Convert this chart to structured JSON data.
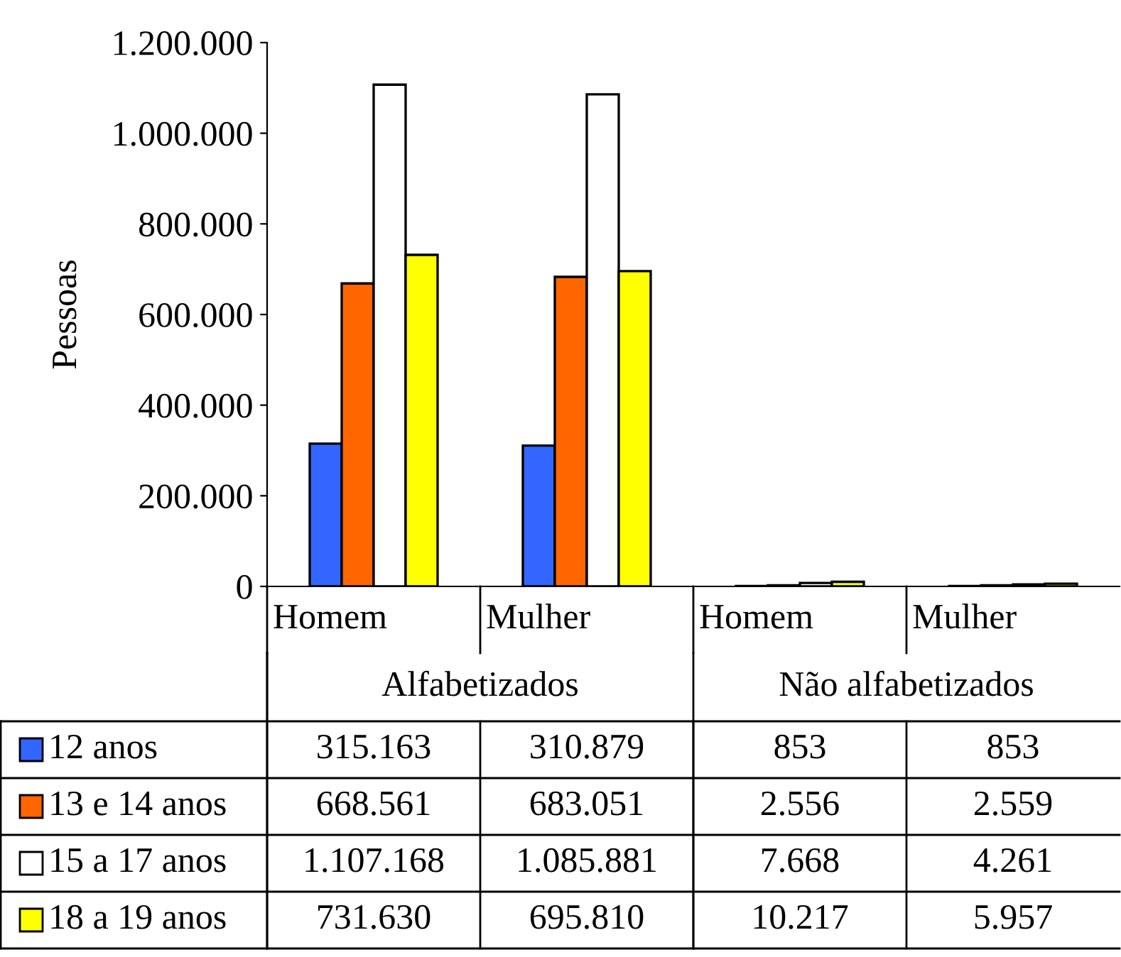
{
  "chart_data": {
    "type": "bar",
    "ylabel": "Pessoas",
    "categories": [
      "Homem",
      "Mulher",
      "Homem",
      "Mulher"
    ],
    "annotations": [
      "Alfabetizados",
      "Não alfabetizados"
    ],
    "series": [
      {
        "name": "12 anos",
        "color": "#3366ff",
        "values": [
          315163,
          310879,
          853,
          853
        ],
        "value_labels": [
          "315.163",
          "310.879",
          "853",
          "853"
        ]
      },
      {
        "name": "13 e 14 anos",
        "color": "#ff6600",
        "values": [
          668561,
          683051,
          2556,
          2559
        ],
        "value_labels": [
          "668.561",
          "683.051",
          "2.556",
          "2.559"
        ]
      },
      {
        "name": "15 a 17 anos",
        "color": "#ffffff",
        "values": [
          1107168,
          1085881,
          7668,
          4261
        ],
        "value_labels": [
          "1.107.168",
          "1.085.881",
          "7.668",
          "4.261"
        ]
      },
      {
        "name": "18 a 19 anos",
        "color": "#ffff00",
        "values": [
          731630,
          695810,
          10217,
          5957
        ],
        "value_labels": [
          "731.630",
          "695.810",
          "10.217",
          "5.957"
        ]
      }
    ],
    "ylim": [
      0,
      1200000
    ],
    "yticks": [
      {
        "value": 0,
        "label": "0"
      },
      {
        "value": 200000,
        "label": "200.000"
      },
      {
        "value": 400000,
        "label": "400.000"
      },
      {
        "value": 600000,
        "label": "600.000"
      },
      {
        "value": 800000,
        "label": "800.000"
      },
      {
        "value": 1000000,
        "label": "1.000.000"
      },
      {
        "value": 1200000,
        "label": "1.200.000"
      }
    ],
    "grid": false,
    "legend": "bottom"
  }
}
